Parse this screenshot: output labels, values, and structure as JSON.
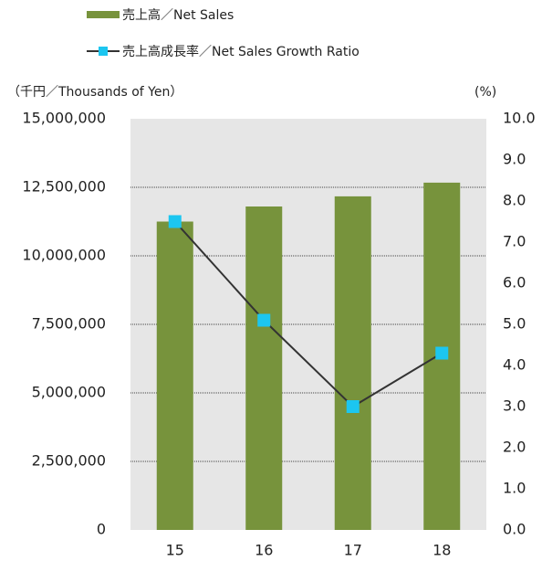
{
  "chart_data": {
    "type": "bar_line",
    "categories": [
      "15",
      "16",
      "17",
      "18"
    ],
    "series": [
      {
        "name": "売上高／Net Sales",
        "type": "bar",
        "color": "#77933c",
        "values": [
          11250000,
          11800000,
          12170000,
          12670000
        ]
      },
      {
        "name": "売上高成長率／Net Sales Growth Ratio",
        "type": "line",
        "color": "#333333",
        "marker_color": "#1cc6f0",
        "axis": "y2",
        "values": [
          7.5,
          5.1,
          3.0,
          4.3
        ]
      }
    ],
    "y_label": "（千円／Thousands of Yen）",
    "y2_label": "(%)",
    "ylim": [
      0,
      15000000
    ],
    "yticks": [
      0,
      {
        "value": 2500000,
        "label": "2,500,000"
      },
      {
        "value": 5000000,
        "label": "5,000,000"
      },
      {
        "value": 7500000,
        "label": "7,500,000"
      },
      {
        "value": 10000000,
        "label": "10,000,000"
      },
      {
        "value": 12500000,
        "label": "12,500,000"
      },
      {
        "value": 15000000,
        "label": "15,000,000"
      }
    ],
    "y2lim": [
      0,
      10
    ],
    "y2ticks": [
      {
        "value": 0,
        "label": "0.0"
      },
      {
        "value": 1,
        "label": "1.0"
      },
      {
        "value": 2,
        "label": "2.0"
      },
      {
        "value": 3,
        "label": "3.0"
      },
      {
        "value": 4,
        "label": "4.0"
      },
      {
        "value": 5,
        "label": "5.0"
      },
      {
        "value": 6,
        "label": "6.0"
      },
      {
        "value": 7,
        "label": "7.0"
      },
      {
        "value": 8,
        "label": "8.0"
      },
      {
        "value": 9,
        "label": "9.0"
      },
      {
        "value": 10,
        "label": "10.0"
      }
    ],
    "grid": true,
    "plot_background": "#e6e6e6"
  }
}
